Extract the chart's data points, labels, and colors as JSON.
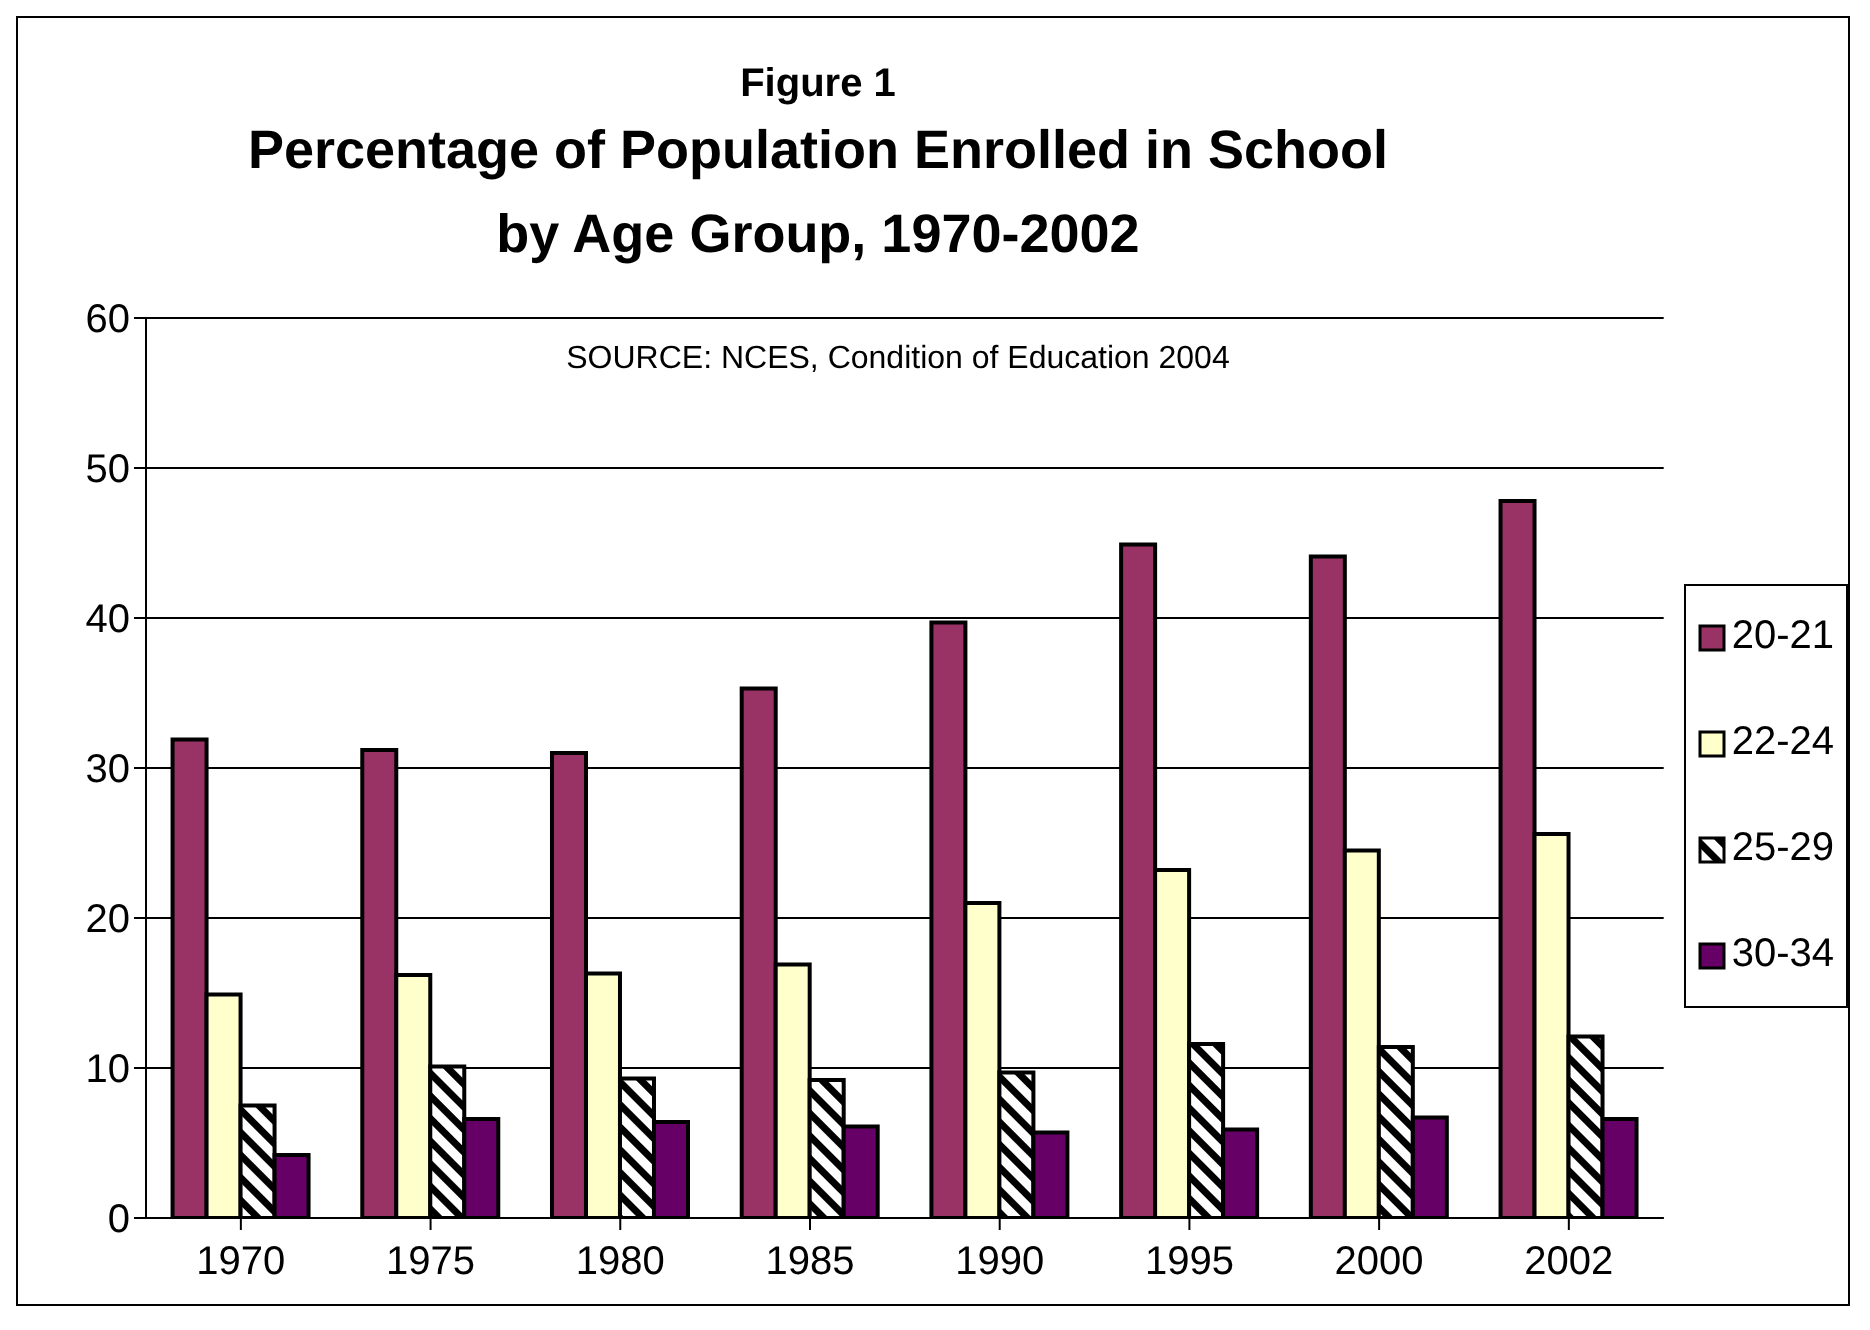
{
  "chart_data": {
    "type": "bar",
    "title": "Figure 1",
    "subtitle": "Percentage of Population Enrolled in School by Age Group, 1970-2002",
    "annotations": [
      "SOURCE: NCES, Condition of Education 2004"
    ],
    "categories": [
      "1970",
      "1975",
      "1980",
      "1985",
      "1990",
      "1995",
      "2000",
      "2002"
    ],
    "series": [
      {
        "name": "20-21",
        "color": "#993366",
        "values": [
          31.9,
          31.2,
          31.0,
          35.3,
          39.7,
          44.9,
          44.1,
          47.8
        ]
      },
      {
        "name": "22-24",
        "color": "#ffffcc",
        "values": [
          14.9,
          16.2,
          16.3,
          16.9,
          21.0,
          23.2,
          24.5,
          25.6
        ]
      },
      {
        "name": "25-29",
        "color": "#000000",
        "values": [
          7.5,
          10.1,
          9.3,
          9.2,
          9.7,
          11.6,
          11.4,
          12.1
        ]
      },
      {
        "name": "30-34",
        "color": "#660066",
        "values": [
          4.2,
          6.6,
          6.4,
          6.1,
          5.7,
          5.9,
          6.7,
          6.6
        ]
      }
    ],
    "ylim": [
      0,
      60
    ],
    "yticks": [
      0,
      10,
      20,
      30,
      40,
      50,
      60
    ],
    "grid": "y",
    "legend": "right"
  }
}
